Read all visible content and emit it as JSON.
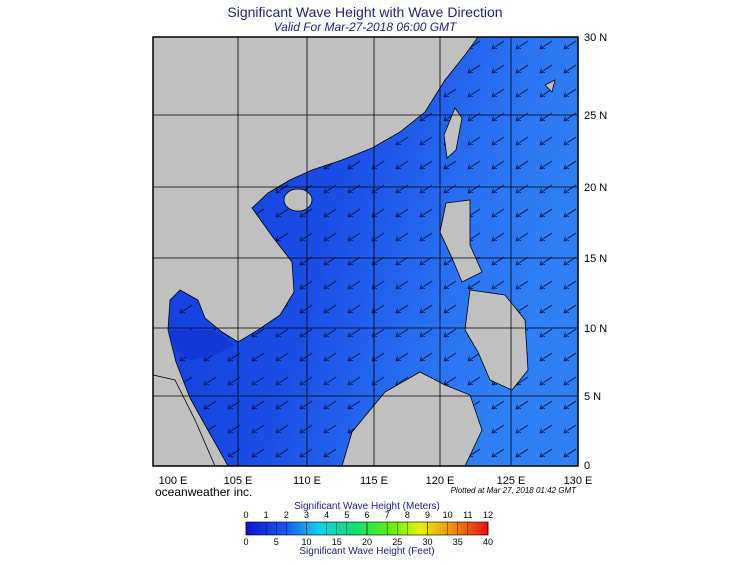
{
  "header": {
    "title": "Significant Wave Height with Wave Direction",
    "subtitle": "Valid For Mar-27-2018 06:00 GMT"
  },
  "map": {
    "lat_labels": [
      "30 N",
      "25 N",
      "20 N",
      "15 N",
      "10 N",
      "5 N",
      "0"
    ],
    "lon_labels": [
      "100 E",
      "105 E",
      "110 E",
      "115 E",
      "120 E",
      "125 E",
      "130 E"
    ]
  },
  "footer": {
    "credit": "oceanweather inc.",
    "plotted": "Plotted at Mar 27, 2018 01:42 GMT"
  },
  "colorbar": {
    "meters_title": "Significant Wave Height (Meters)",
    "feet_title": "Significant Wave Height (Feet)",
    "meters_ticks": [
      0,
      1,
      2,
      3,
      4,
      5,
      6,
      7,
      8,
      9,
      10,
      11,
      12
    ],
    "feet_ticks": [
      0,
      5,
      10,
      15,
      20,
      25,
      30,
      35,
      40
    ]
  }
}
